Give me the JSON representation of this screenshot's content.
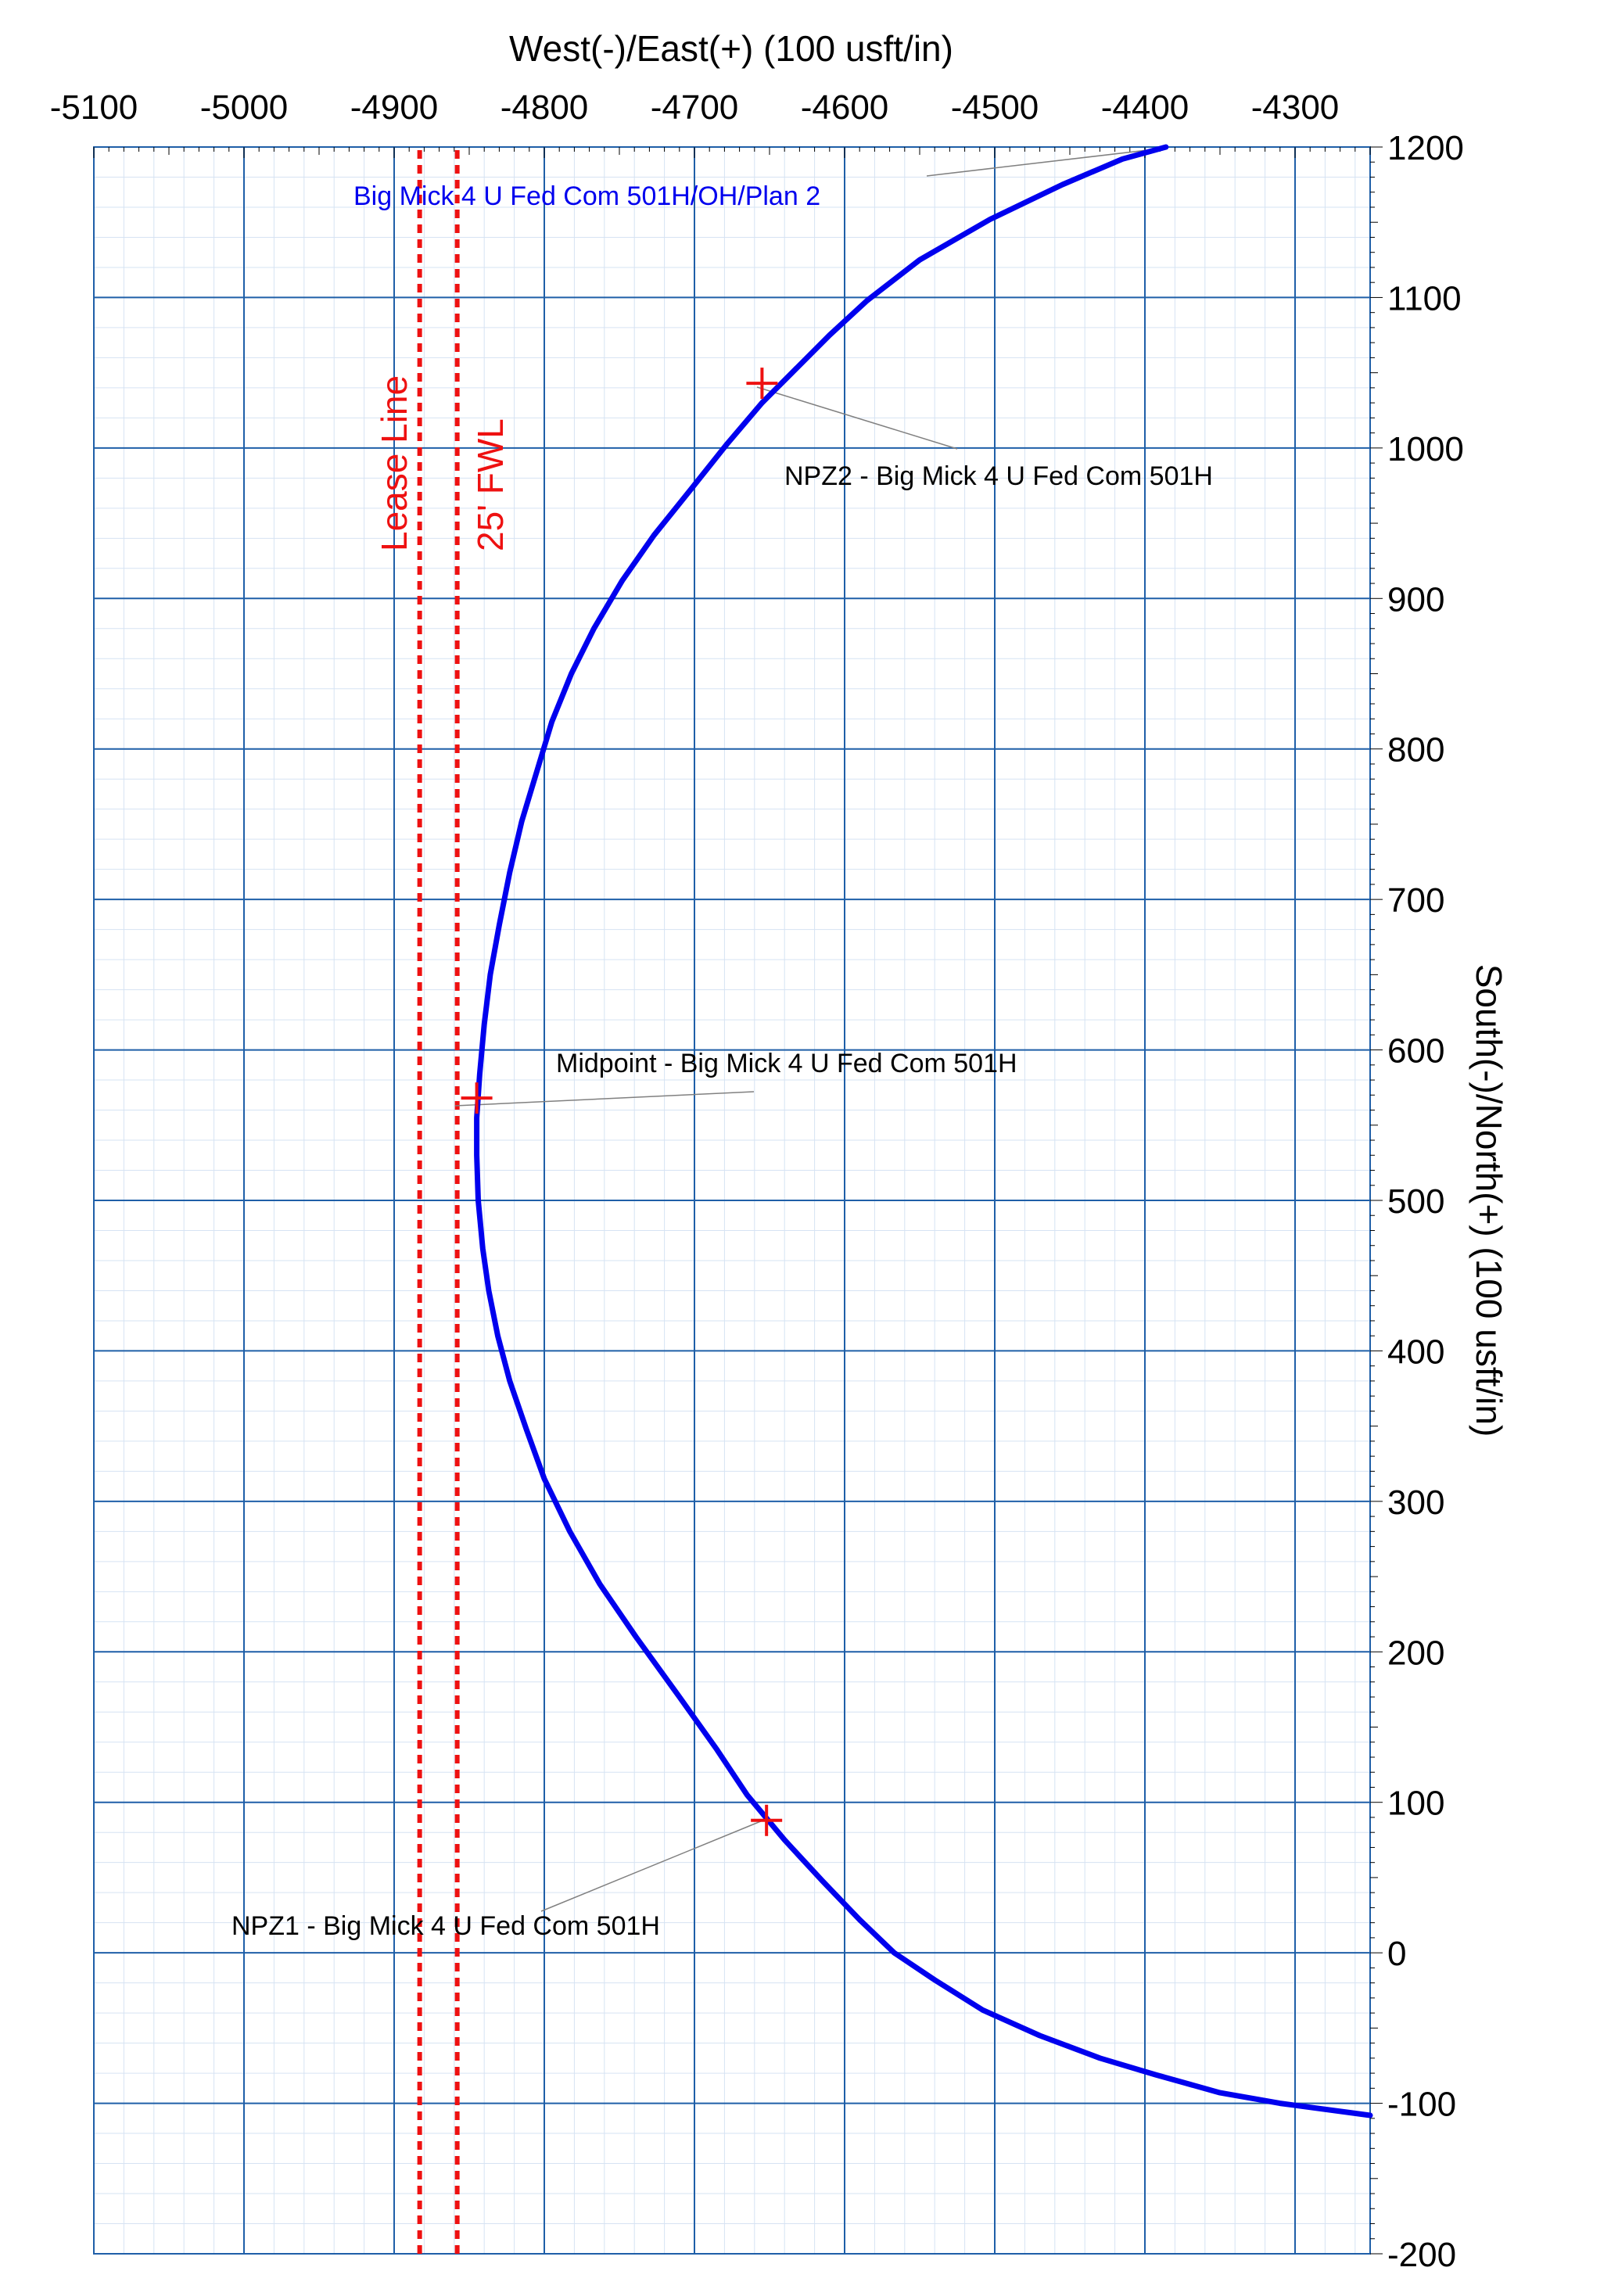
{
  "chart_data": {
    "type": "line",
    "xlabel": "West(-)/East(+) (100 usft/in)",
    "ylabel": "South(-)/North(+) (100 usft/in)",
    "xlim": [
      -5100,
      -4250
    ],
    "ylim": [
      -200,
      1200
    ],
    "x_ticks": [
      -5100,
      -5000,
      -4900,
      -4800,
      -4700,
      -4600,
      -4500,
      -4400,
      -4300
    ],
    "y_ticks": [
      1200,
      1100,
      1000,
      900,
      800,
      700,
      600,
      500,
      400,
      300,
      200,
      100,
      0,
      -100,
      -200
    ],
    "grid": true,
    "colors": {
      "major_grid": "#1f5fa8",
      "minor_grid": "#d6e3f3",
      "wellpath": "#0000ee",
      "lines": "#ee1111",
      "text": "#000000",
      "leader": "#808080"
    },
    "series": [
      {
        "name": "Big Mick 4 U Fed Com 501H/OH/Plan 2",
        "x": [
          -4386,
          -4415,
          -4455,
          -4503,
          -4550,
          -4585,
          -4610,
          -4635,
          -4655,
          -4678,
          -4702,
          -4727,
          -4748,
          -4767,
          -4782,
          -4795,
          -4805,
          -4815,
          -4823,
          -4830,
          -4836,
          -4840,
          -4843,
          -4845,
          -4845,
          -4844,
          -4841,
          -4837,
          -4831,
          -4823,
          -4812,
          -4800,
          -4783,
          -4763,
          -4739,
          -4710,
          -4685,
          -4665,
          -4640,
          -4615,
          -4590,
          -4567,
          -4540,
          -4508,
          -4470,
          -4430,
          -4393,
          -4350,
          -4310,
          -4265,
          -4250
        ],
        "y": [
          1200,
          1192,
          1175,
          1152,
          1125,
          1098,
          1075,
          1050,
          1030,
          1003,
          973,
          942,
          912,
          880,
          850,
          818,
          785,
          752,
          718,
          683,
          650,
          617,
          584,
          555,
          530,
          500,
          468,
          440,
          410,
          380,
          348,
          315,
          280,
          245,
          210,
          170,
          135,
          105,
          75,
          48,
          22,
          0,
          -18,
          -38,
          -55,
          -70,
          -81,
          -93,
          -100,
          -106,
          -108
        ]
      },
      {
        "name": "Lease Line",
        "x": [
          -4883,
          -4883
        ],
        "y": [
          -200,
          1200
        ]
      },
      {
        "name": "25' FWL",
        "x": [
          -4858,
          -4858
        ],
        "y": [
          -200,
          1200
        ]
      }
    ],
    "annotations": [
      {
        "text": "Big Mick 4 U Fed Com 501H/OH/Plan 2",
        "x": -4386,
        "y": 1200
      },
      {
        "text": "NPZ2 - Big Mick 4 U Fed Com 501H",
        "x": -4655,
        "y": 1043
      },
      {
        "text": "Midpoint - Big Mick 4 U Fed Com 501H",
        "x": -4845,
        "y": 568
      },
      {
        "text": "NPZ1 - Big Mick 4 U Fed Com 501H",
        "x": -4652,
        "y": 88
      }
    ],
    "markers": [
      {
        "label": "NPZ2 - Big Mick 4 U Fed Com 501H",
        "x": -4655,
        "y": 1043
      },
      {
        "label": "Midpoint - Big Mick 4 U Fed Com 501H",
        "x": -4845,
        "y": 568
      },
      {
        "label": "NPZ1 - Big Mick 4 U Fed Com 501H",
        "x": -4652,
        "y": 88
      }
    ]
  }
}
